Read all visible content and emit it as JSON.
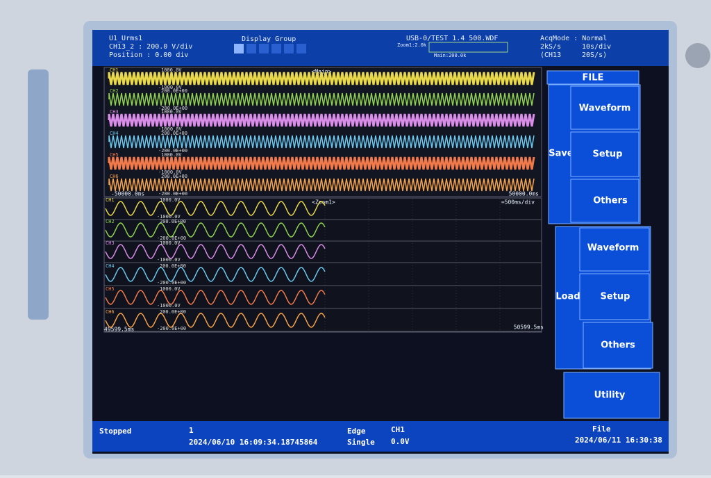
{
  "header": {
    "trace": "U1_Urms1",
    "channel_scale": "CH13_2 : 200.0 V/div",
    "position": "Position : 0.00 div",
    "display_group": "Display Group",
    "file": "USB-0/TEST 1.4 500.WDF",
    "zoom": "Zoom1:2.0k",
    "main": "Main:200.0k",
    "acq_mode": "AcqMode : Normal",
    "sample_rate": "2kS/s",
    "time_div": "10s/div",
    "sub_channel": "(CH13",
    "sub_rate": "20S/s)"
  },
  "main_window": {
    "label": "<Main>",
    "start": "-50000.0ms",
    "end": "50000.0ms",
    "channels": [
      {
        "name": "CH1",
        "top": "1000.0V",
        "bottom": "-1000.0V"
      },
      {
        "name": "CH2",
        "top": "200.0E+00",
        "bottom": "-200.0E+00"
      },
      {
        "name": "CH3",
        "top": "1000.0V",
        "bottom": "-1000.0V"
      },
      {
        "name": "CH4",
        "top": "200.0E+00",
        "bottom": "-200.0E+00"
      },
      {
        "name": "CH5",
        "top": "1000.0V",
        "bottom": "-1000.0V"
      },
      {
        "name": "CH6",
        "top": "200.0E+00",
        "bottom": "-200.0E+00"
      }
    ]
  },
  "zoom_window": {
    "label": "<Zoom1>",
    "time_div": "=500ms/div",
    "start": "49599.5ms",
    "end": "50599.5ms",
    "channels": [
      {
        "name": "CH1",
        "top": "1000.0V",
        "bottom": "-1000.0V"
      },
      {
        "name": "CH2",
        "top": "200.0E+00",
        "bottom": "-200.0E+00"
      },
      {
        "name": "CH3",
        "top": "1000.0V",
        "bottom": "-1000.0V"
      },
      {
        "name": "CH4",
        "top": "200.0E+00",
        "bottom": "-200.0E+00"
      },
      {
        "name": "CH5",
        "top": "1000.0V",
        "bottom": "-1000.0V"
      },
      {
        "name": "CH6",
        "top": "200.0E+00",
        "bottom": "-200.0E+00"
      }
    ]
  },
  "menu": {
    "title": "FILE",
    "save": {
      "label": "Save",
      "items": [
        "Waveform",
        "Setup",
        "Others"
      ]
    },
    "load": {
      "label": "Load",
      "items": [
        "Waveform",
        "Setup",
        "Others"
      ]
    },
    "utility": "Utility"
  },
  "status": {
    "state": "Stopped",
    "count": "1",
    "trigger_time": "2024/06/10 16:09:34.18745864",
    "trigger_type": "Edge",
    "trigger_mode": "Single",
    "trigger_source": "CH1",
    "trigger_level": "0.0V",
    "media": "File",
    "clock": "2024/06/11 16:30:38"
  }
}
